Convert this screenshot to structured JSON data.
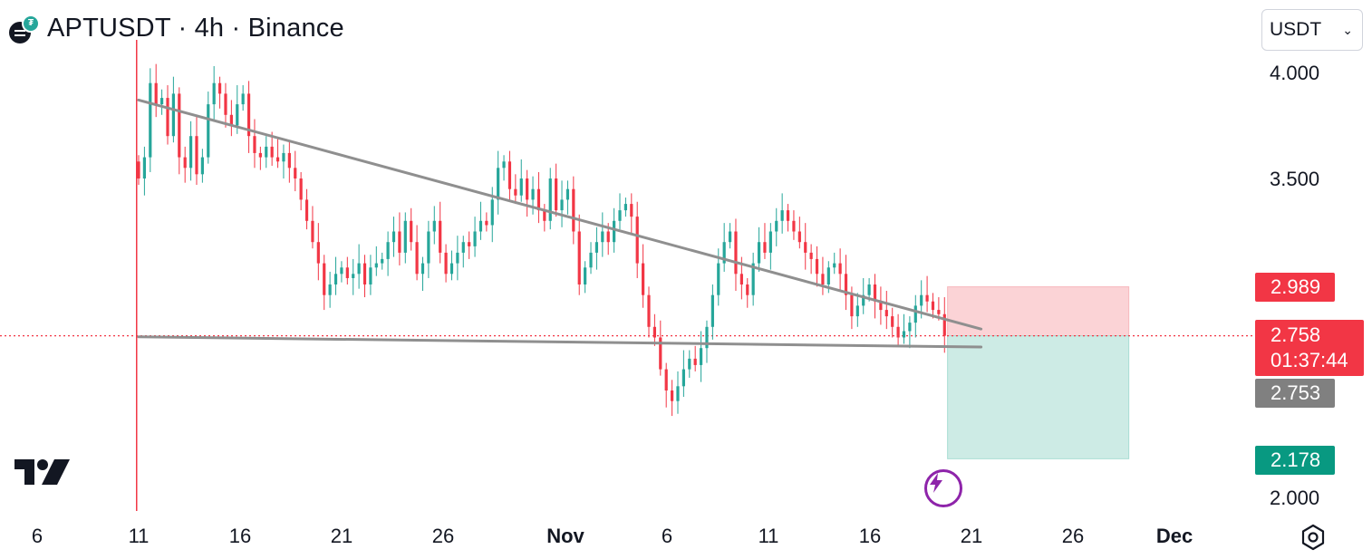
{
  "header": {
    "title": "APTUSDT · 4h · Binance"
  },
  "currency_select": {
    "value": "USDT"
  },
  "price_boxes": {
    "target": "2.989",
    "current": "2.758",
    "countdown": "01:37:44",
    "prev_close": "2.753",
    "stop": "2.178"
  },
  "colors": {
    "up": "#26a69a",
    "down": "#f23645",
    "trendline": "#8f8f8f",
    "profit_zone": "#fbd3d6",
    "loss_zone": "#cdebe5",
    "current_price": "#f23645",
    "prev_close_box": "#808080",
    "stop_box": "#089981",
    "alert_icon": "#8e24aa"
  },
  "chart_data": {
    "type": "candlestick",
    "symbol": "APTUSDT",
    "interval": "4h",
    "exchange": "Binance",
    "y_ticks": [
      "4.000",
      "3.500",
      "2.000"
    ],
    "x_ticks": [
      "6",
      "11",
      "16",
      "21",
      "26",
      "Nov",
      "6",
      "11",
      "16",
      "21",
      "26",
      "Dec"
    ],
    "ylim": [
      2.0,
      4.15
    ],
    "x_range_days": [
      "Oct 6",
      "Dec 1"
    ],
    "closes": [
      3.5,
      3.6,
      3.95,
      3.85,
      3.88,
      3.7,
      3.9,
      3.6,
      3.55,
      3.7,
      3.52,
      3.6,
      3.85,
      3.95,
      3.9,
      3.8,
      3.75,
      3.85,
      3.9,
      3.7,
      3.62,
      3.6,
      3.65,
      3.6,
      3.58,
      3.62,
      3.55,
      3.5,
      3.4,
      3.3,
      3.2,
      3.1,
      2.95,
      3.0,
      3.05,
      3.08,
      3.03,
      3.05,
      3.1,
      3.0,
      3.08,
      3.1,
      3.12,
      3.2,
      3.25,
      3.15,
      3.3,
      3.2,
      3.05,
      3.1,
      3.25,
      3.3,
      3.15,
      3.05,
      3.1,
      3.15,
      3.2,
      3.18,
      3.25,
      3.3,
      3.28,
      3.4,
      3.55,
      3.58,
      3.45,
      3.42,
      3.5,
      3.4,
      3.45,
      3.35,
      3.3,
      3.5,
      3.35,
      3.4,
      3.45,
      3.25,
      3.0,
      3.08,
      3.15,
      3.2,
      3.25,
      3.2,
      3.3,
      3.35,
      3.38,
      3.32,
      3.1,
      2.95,
      2.8,
      2.75,
      2.6,
      2.5,
      2.45,
      2.52,
      2.6,
      2.65,
      2.62,
      2.7,
      2.8,
      2.95,
      3.1,
      3.2,
      3.25,
      3.05,
      3.0,
      2.95,
      3.1,
      3.2,
      3.15,
      3.25,
      3.3,
      3.35,
      3.3,
      3.25,
      3.2,
      3.15,
      3.12,
      3.05,
      3.0,
      3.08,
      3.1,
      3.05,
      2.95,
      2.85,
      2.9,
      2.95,
      3.0,
      2.92,
      2.88,
      2.85,
      2.8,
      2.75,
      2.78,
      2.82,
      2.9,
      2.95,
      2.92,
      2.88,
      2.86,
      2.758
    ]
  }
}
